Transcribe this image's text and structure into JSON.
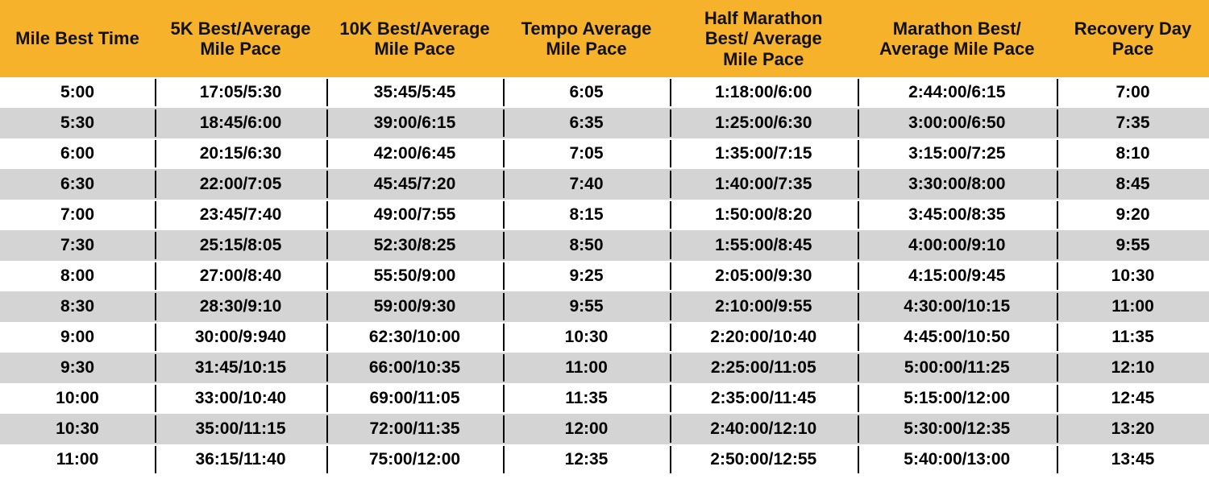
{
  "table": {
    "type": "table",
    "header_bg": "#f6b22b",
    "row_bg_even": "#ffffff",
    "row_bg_odd": "#d4d4d4",
    "separator_color": "#000000",
    "header_fontsize": 22,
    "body_fontsize": 21,
    "header_fontweight": 700,
    "body_fontweight": 600,
    "columns": [
      {
        "label_line1": "Mile Best Time",
        "label_line2": "",
        "width_pct": 12.8
      },
      {
        "label_line1": "5K Best/Average",
        "label_line2": "Mile Pace",
        "width_pct": 14.2
      },
      {
        "label_line1": "10K Best/Average",
        "label_line2": "Mile Pace",
        "width_pct": 14.6
      },
      {
        "label_line1": "Tempo Average",
        "label_line2": "Mile Pace",
        "width_pct": 13.8
      },
      {
        "label_line1": "Half Marathon",
        "label_line2": "Best/ Average",
        "label_line3": "Mile Pace",
        "width_pct": 15.5
      },
      {
        "label_line1": "Marathon Best/",
        "label_line2": "Average Mile Pace",
        "width_pct": 16.5
      },
      {
        "label_line1": "Recovery Day",
        "label_line2": "Pace",
        "width_pct": 12.6
      }
    ],
    "rows": [
      [
        "5:00",
        "17:05/5:30",
        "35:45/5:45",
        "6:05",
        "1:18:00/6:00",
        "2:44:00/6:15",
        "7:00"
      ],
      [
        "5:30",
        "18:45/6:00",
        "39:00/6:15",
        "6:35",
        "1:25:00/6:30",
        "3:00:00/6:50",
        "7:35"
      ],
      [
        "6:00",
        "20:15/6:30",
        "42:00/6:45",
        "7:05",
        "1:35:00/7:15",
        "3:15:00/7:25",
        "8:10"
      ],
      [
        "6:30",
        "22:00/7:05",
        "45:45/7:20",
        "7:40",
        "1:40:00/7:35",
        "3:30:00/8:00",
        "8:45"
      ],
      [
        "7:00",
        "23:45/7:40",
        "49:00/7:55",
        "8:15",
        "1:50:00/8:20",
        "3:45:00/8:35",
        "9:20"
      ],
      [
        "7:30",
        "25:15/8:05",
        "52:30/8:25",
        "8:50",
        "1:55:00/8:45",
        "4:00:00/9:10",
        "9:55"
      ],
      [
        "8:00",
        "27:00/8:40",
        "55:50/9:00",
        "9:25",
        "2:05:00/9:30",
        "4:15:00/9:45",
        "10:30"
      ],
      [
        "8:30",
        "28:30/9:10",
        "59:00/9:30",
        "9:55",
        "2:10:00/9:55",
        "4:30:00/10:15",
        "11:00"
      ],
      [
        "9:00",
        "30:00/9:940",
        "62:30/10:00",
        "10:30",
        "2:20:00/10:40",
        "4:45:00/10:50",
        "11:35"
      ],
      [
        "9:30",
        "31:45/10:15",
        "66:00/10:35",
        "11:00",
        "2:25:00/11:05",
        "5:00:00/11:25",
        "12:10"
      ],
      [
        "10:00",
        "33:00/10:40",
        "69:00/11:05",
        "11:35",
        "2:35:00/11:45",
        "5:15:00/12:00",
        "12:45"
      ],
      [
        "10:30",
        "35:00/11:15",
        "72:00/11:35",
        "12:00",
        "2:40:00/12:10",
        "5:30:00/12:35",
        "13:20"
      ],
      [
        "11:00",
        "36:15/11:40",
        "75:00/12:00",
        "12:35",
        "2:50:00/12:55",
        "5:40:00/13:00",
        "13:45"
      ]
    ]
  }
}
